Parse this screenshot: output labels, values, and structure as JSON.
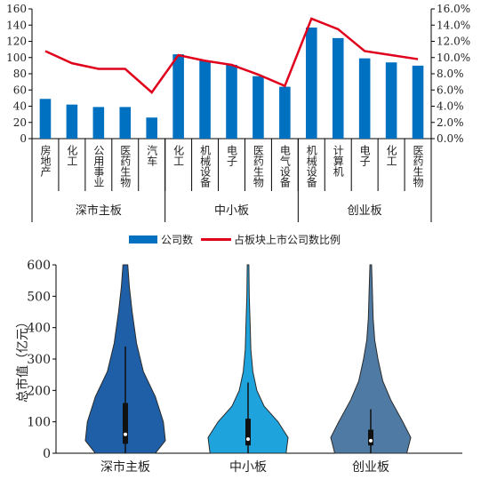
{
  "chart_data": [
    {
      "type": "bar",
      "categories": [
        "房地产",
        "化工",
        "公用事业",
        "医药生物",
        "汽车",
        "化工",
        "机械设备",
        "电子",
        "医药生物",
        "电气设备",
        "机械设备",
        "计算机",
        "电子",
        "化工",
        "医药生物"
      ],
      "groups": [
        {
          "name": "深市主板",
          "count": 5
        },
        {
          "name": "中小板",
          "count": 5
        },
        {
          "name": "创业板",
          "count": 5
        }
      ],
      "series": [
        {
          "name": "公司数",
          "type": "bar",
          "axis": "left",
          "color": "#0070c0",
          "values": [
            49,
            42,
            39,
            39,
            26,
            104,
            96,
            91,
            77,
            64,
            137,
            124,
            99,
            94,
            90
          ]
        },
        {
          "name": "占板块上市公司数比例",
          "type": "line",
          "axis": "right",
          "color": "#e0001b",
          "values": [
            10.8,
            9.3,
            8.6,
            8.6,
            5.7,
            10.3,
            9.6,
            9.1,
            7.9,
            6.5,
            14.8,
            13.5,
            10.8,
            10.3,
            9.8
          ]
        }
      ],
      "ylim": [
        0,
        160
      ],
      "yticks": [
        "0",
        "20",
        "40",
        "60",
        "80",
        "100",
        "120",
        "140",
        "160"
      ],
      "y2lim": [
        0,
        16
      ],
      "y2ticks": [
        "0.0%",
        "2.0%",
        "4.0%",
        "6.0%",
        "8.0%",
        "10.0%",
        "12.0%",
        "14.0%",
        "16.0%"
      ],
      "legend": "bottom",
      "grid": false
    },
    {
      "type": "violin",
      "categories": [
        "深市主板",
        "中小板",
        "创业板"
      ],
      "ylabel": "总市值（亿元）",
      "ylim": [
        0,
        600
      ],
      "yticks": [
        "0",
        "100",
        "200",
        "300",
        "400",
        "500",
        "600"
      ],
      "colors": [
        "#1f5fa8",
        "#1fa3dc",
        "#4f7aa3"
      ],
      "violins": [
        {
          "name": "深市主板",
          "median": 60,
          "q1": 30,
          "q3": 160,
          "whisker_high": 340,
          "profile": [
            [
              0,
              0.75
            ],
            [
              40,
              1.0
            ],
            [
              100,
              0.95
            ],
            [
              180,
              0.75
            ],
            [
              260,
              0.45
            ],
            [
              350,
              0.28
            ],
            [
              450,
              0.17
            ],
            [
              530,
              0.1
            ],
            [
              600,
              0.06
            ]
          ]
        },
        {
          "name": "中小板",
          "median": 45,
          "q1": 25,
          "q3": 110,
          "whisker_high": 225,
          "profile": [
            [
              0,
              0.95
            ],
            [
              50,
              1.0
            ],
            [
              100,
              0.75
            ],
            [
              150,
              0.4
            ],
            [
              200,
              0.22
            ],
            [
              260,
              0.12
            ],
            [
              330,
              0.07
            ],
            [
              420,
              0.05
            ],
            [
              500,
              0.03
            ],
            [
              600,
              0.02
            ]
          ]
        },
        {
          "name": "创业板",
          "median": 40,
          "q1": 25,
          "q3": 75,
          "whisker_high": 140,
          "profile": [
            [
              0,
              0.9
            ],
            [
              50,
              1.0
            ],
            [
              100,
              0.8
            ],
            [
              170,
              0.5
            ],
            [
              230,
              0.3
            ],
            [
              300,
              0.18
            ],
            [
              360,
              0.1
            ],
            [
              430,
              0.06
            ],
            [
              520,
              0.04
            ],
            [
              600,
              0.02
            ]
          ]
        }
      ]
    }
  ]
}
